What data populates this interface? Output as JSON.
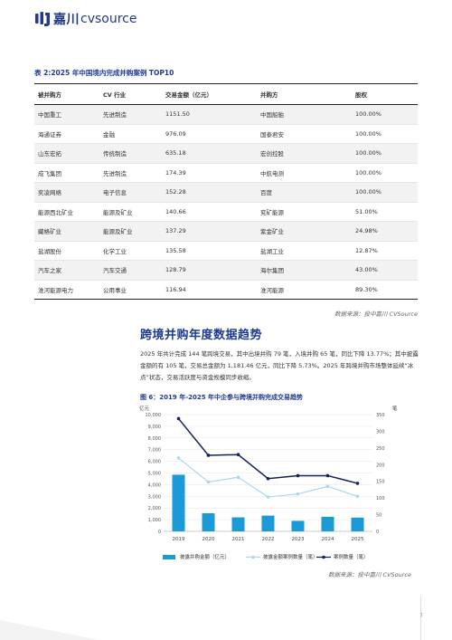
{
  "header": {
    "logo_cn": "嘉川",
    "logo_en": "cvsource"
  },
  "table": {
    "title": "表 2:2025 年中国境内完成并购案例 TOP10",
    "headers": [
      "被并购方",
      "CV 行业",
      "交易金额（亿元）",
      "并购方",
      "股权"
    ],
    "rows": [
      [
        "中国重工",
        "先进制造",
        "1151.50",
        "中国船舶",
        "100.00%"
      ],
      [
        "海通证券",
        "金融",
        "976.09",
        "国泰君安",
        "100.00%"
      ],
      [
        "山东宏拓",
        "传统制造",
        "635.18",
        "宏创控股",
        "100.00%"
      ],
      [
        "成飞集团",
        "先进制造",
        "174.39",
        "中航电测",
        "100.00%"
      ],
      [
        "奕凌网络",
        "电子信息",
        "152.28",
        "百度",
        "100.00%"
      ],
      [
        "能源西北矿业",
        "能源及矿业",
        "140.66",
        "兖矿能源",
        "51.00%"
      ],
      [
        "藏格矿业",
        "能源及矿业",
        "137.29",
        "紫金矿业",
        "24.98%"
      ],
      [
        "盐湖股份",
        "化学工业",
        "135.58",
        "盐湖工业",
        "12.87%"
      ],
      [
        "汽车之家",
        "汽车交通",
        "128.79",
        "海尔集团",
        "43.00%"
      ],
      [
        "淮河能源电力",
        "公用事业",
        "116.94",
        "淮河能源",
        "89.30%"
      ]
    ],
    "source": "数据来源：投中嘉川 CVSource"
  },
  "section": {
    "title": "跨境并购年度数据趋势",
    "paragraph": "2025 年共计完成 144 笔跨境交易，其中出境并购 79 笔，入境并购 65 笔，同比下降 13.77%；其中披露金额的有 105 笔，交易总金额为 1,181.46 亿元，同比下降 5.73%。2025 年跨境并购市场整体延续“冰点”状态，交易活跃度与资金规模同步收缩。"
  },
  "figure": {
    "title": "图 6：2019 年-2025 年中企参与跨境并购完成交易趋势",
    "source": "数据来源：投中嘉川 CVSource"
  },
  "chart_data": {
    "type": "bar",
    "categories": [
      "2019",
      "2020",
      "2021",
      "2022",
      "2023",
      "2024",
      "2025"
    ],
    "left_unit": "亿元",
    "right_unit": "笔",
    "left_ylim": [
      0,
      10000
    ],
    "right_ylim": [
      0,
      350
    ],
    "left_ticks": [
      "0",
      "1,000",
      "2,000",
      "3,000",
      "4,000",
      "5,000",
      "6,000",
      "7,000",
      "8,000",
      "9,000",
      "10,000"
    ],
    "right_ticks": [
      "0",
      "50",
      "100",
      "150",
      "200",
      "250",
      "300",
      "350"
    ],
    "series": [
      {
        "name": "披露并购金额（亿元）",
        "type": "bar",
        "axis": "left",
        "color": "#1a9ad6",
        "values": [
          4850,
          1550,
          1200,
          1350,
          900,
          1250,
          1180
        ]
      },
      {
        "name": "披露金额案例数量（笔）",
        "type": "line",
        "axis": "right",
        "color": "#a9d8ee",
        "values": [
          220,
          148,
          162,
          103,
          112,
          135,
          105
        ]
      },
      {
        "name": "案例数量（笔）",
        "type": "line",
        "axis": "right",
        "color": "#13205c",
        "values": [
          338,
          228,
          230,
          158,
          167,
          167,
          144
        ]
      }
    ],
    "grid": true,
    "legend": "bottom"
  },
  "page_number": "7"
}
